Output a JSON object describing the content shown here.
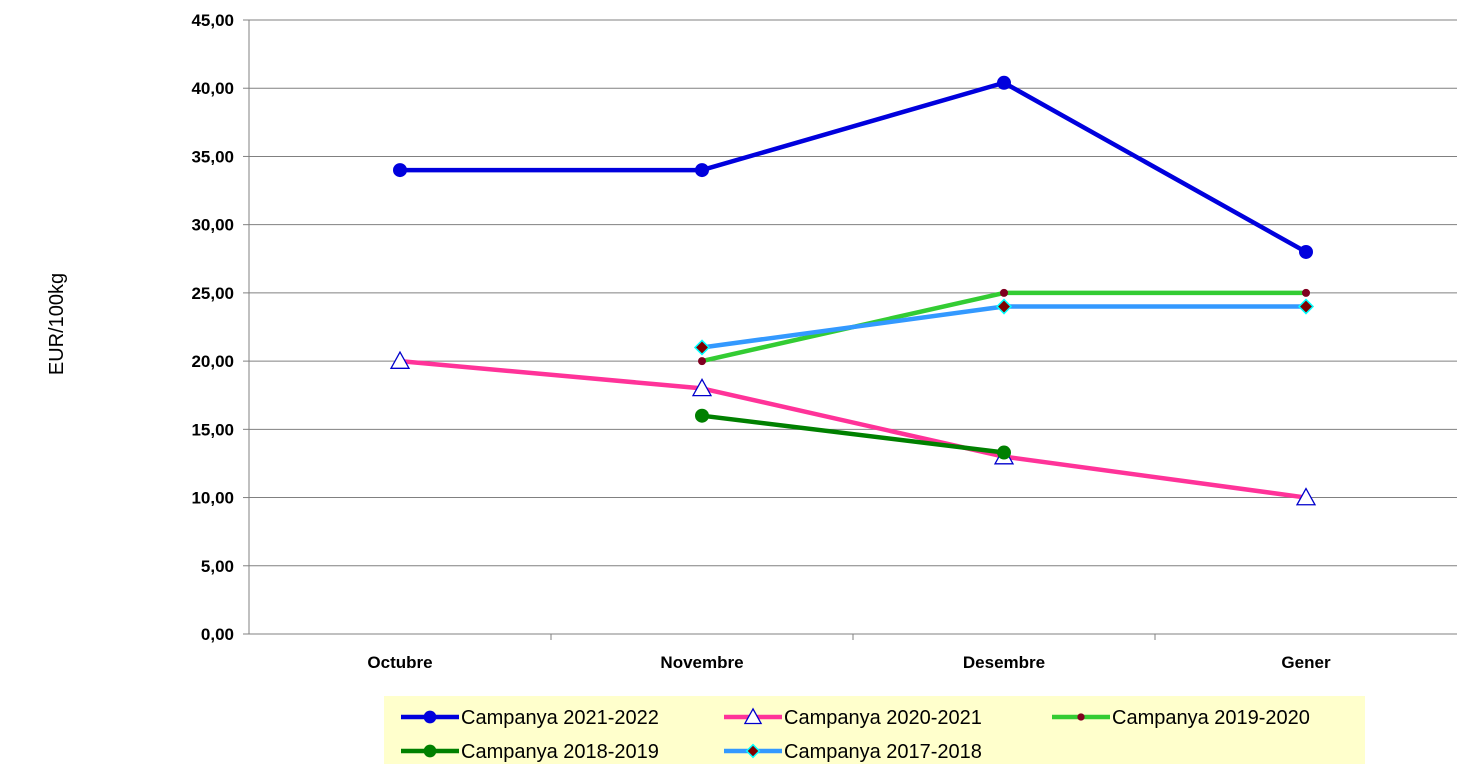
{
  "chart_data": {
    "type": "line",
    "title": "",
    "xlabel": "",
    "ylabel": "EUR/100kg",
    "categories": [
      "Octubre",
      "Novembre",
      "Desembre",
      "Gener"
    ],
    "ylim": [
      0,
      45
    ],
    "yticks": [
      "0,00",
      "5,00",
      "10,00",
      "15,00",
      "20,00",
      "25,00",
      "30,00",
      "35,00",
      "40,00",
      "45,00"
    ],
    "grid": true,
    "legend_position": "bottom",
    "series": [
      {
        "name": "Campanya 2021-2022",
        "values": [
          34,
          34,
          40.4,
          28
        ],
        "color": "#0000dd",
        "marker": "circle",
        "marker_fill": "#0000dd",
        "marker_stroke": "#0000dd"
      },
      {
        "name": "Campanya 2020-2021",
        "values": [
          20,
          18,
          13,
          10
        ],
        "color": "#ff3399",
        "marker": "triangle",
        "marker_fill": "#ffffff",
        "marker_stroke": "#0000cc"
      },
      {
        "name": "Campanya 2019-2020",
        "values": [
          null,
          20,
          25,
          25
        ],
        "color": "#33cc33",
        "marker": "dot",
        "marker_fill": "#800020",
        "marker_stroke": "#800020"
      },
      {
        "name": "Campanya 2018-2019",
        "values": [
          null,
          16,
          13.3,
          null
        ],
        "color": "#008000",
        "marker": "circle",
        "marker_fill": "#008000",
        "marker_stroke": "#008000"
      },
      {
        "name": "Campanya 2017-2018",
        "values": [
          null,
          21,
          24,
          24
        ],
        "color": "#3399ff",
        "marker": "diamond",
        "marker_fill": "#800000",
        "marker_stroke": "#00ffff"
      }
    ],
    "colors": {
      "plot_border": "#808080",
      "gridline": "#808080",
      "axis": "#808080",
      "legend_background": "#ffffcc"
    }
  }
}
